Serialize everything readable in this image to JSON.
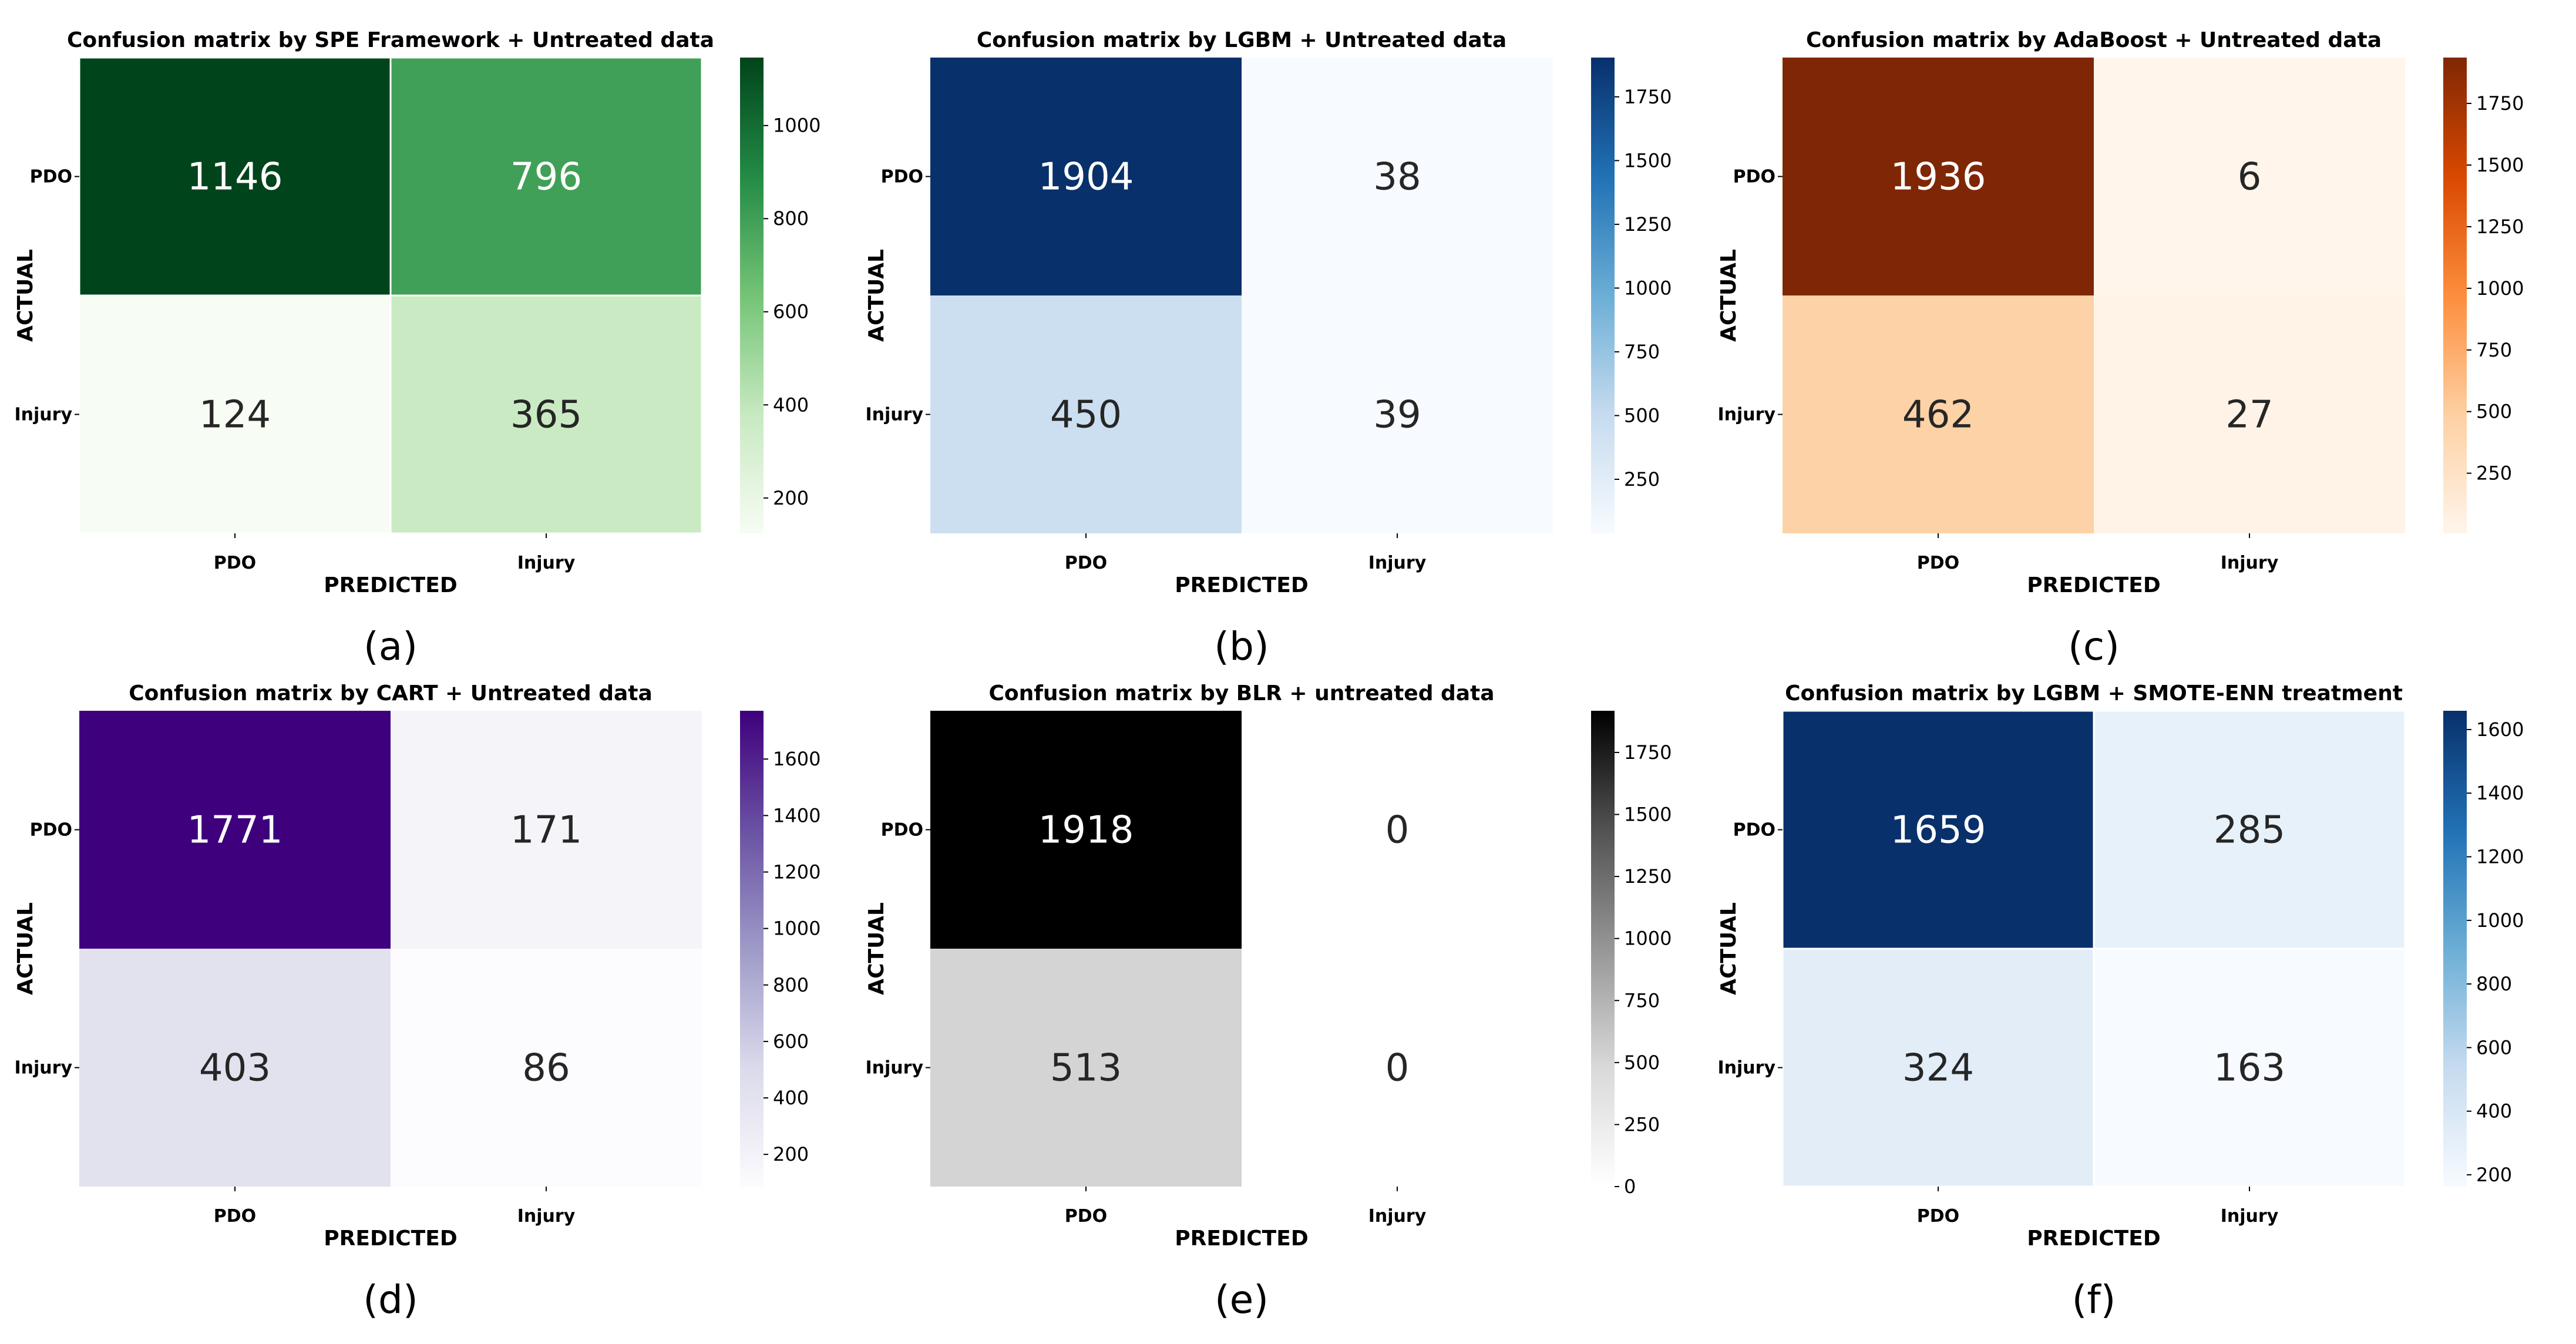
{
  "chart_data": [
    {
      "type": "heatmap",
      "panel_label": "(a)",
      "title": "Confusion matrix by SPE Framework + Untreated data",
      "xlabel": "PREDICTED",
      "ylabel": "ACTUAL",
      "x_categories": [
        "PDO",
        "Injury"
      ],
      "y_categories": [
        "PDO",
        "Injury"
      ],
      "values": [
        [
          1146,
          796
        ],
        [
          124,
          365
        ]
      ],
      "colormap": "Greens",
      "colors": [
        "#f7fcf5",
        "#c7e9c0",
        "#74c476",
        "#238b45",
        "#00441b"
      ],
      "colorbar_range": [
        124,
        1146
      ],
      "colorbar_ticks": [
        200,
        400,
        600,
        800,
        1000
      ],
      "grid_lines": true
    },
    {
      "type": "heatmap",
      "panel_label": "(b)",
      "title": "Confusion matrix by LGBM + Untreated data",
      "xlabel": "PREDICTED",
      "ylabel": "ACTUAL",
      "x_categories": [
        "PDO",
        "Injury"
      ],
      "y_categories": [
        "PDO",
        "Injury"
      ],
      "values": [
        [
          1904,
          38
        ],
        [
          450,
          39
        ]
      ],
      "colormap": "Blues",
      "colors": [
        "#f7fbff",
        "#c6dbef",
        "#6baed6",
        "#2171b5",
        "#08306b"
      ],
      "colorbar_range": [
        38,
        1904
      ],
      "colorbar_ticks": [
        250,
        500,
        750,
        1000,
        1250,
        1500,
        1750
      ],
      "grid_lines": false
    },
    {
      "type": "heatmap",
      "panel_label": "(c)",
      "title": "Confusion matrix by AdaBoost + Untreated data",
      "xlabel": "PREDICTED",
      "ylabel": "ACTUAL",
      "x_categories": [
        "PDO",
        "Injury"
      ],
      "y_categories": [
        "PDO",
        "Injury"
      ],
      "values": [
        [
          1936,
          6
        ],
        [
          462,
          27
        ]
      ],
      "colormap": "Oranges",
      "colors": [
        "#fff5eb",
        "#fdd0a2",
        "#fd8d3c",
        "#d94801",
        "#7f2704"
      ],
      "colorbar_range": [
        6,
        1936
      ],
      "colorbar_ticks": [
        250,
        500,
        750,
        1000,
        1250,
        1500,
        1750
      ],
      "grid_lines": false
    },
    {
      "type": "heatmap",
      "panel_label": "(d)",
      "title": "Confusion matrix by CART + Untreated data",
      "xlabel": "PREDICTED",
      "ylabel": "ACTUAL",
      "x_categories": [
        "PDO",
        "Injury"
      ],
      "y_categories": [
        "PDO",
        "Injury"
      ],
      "values": [
        [
          1771,
          171
        ],
        [
          403,
          86
        ]
      ],
      "colormap": "Purples",
      "colors": [
        "#fcfbfd",
        "#dadaeb",
        "#9e9ac8",
        "#6a51a3",
        "#3f007d"
      ],
      "colorbar_range": [
        86,
        1771
      ],
      "colorbar_ticks": [
        200,
        400,
        600,
        800,
        1000,
        1200,
        1400,
        1600
      ],
      "grid_lines": false
    },
    {
      "type": "heatmap",
      "panel_label": "(e)",
      "title": "Confusion matrix by BLR + untreated data",
      "xlabel": "PREDICTED",
      "ylabel": "ACTUAL",
      "x_categories": [
        "PDO",
        "Injury"
      ],
      "y_categories": [
        "PDO",
        "Injury"
      ],
      "values": [
        [
          1918,
          0
        ],
        [
          513,
          0
        ]
      ],
      "colormap": "Greys",
      "colors": [
        "#ffffff",
        "#d9d9d9",
        "#969696",
        "#525252",
        "#000000"
      ],
      "colorbar_range": [
        0,
        1918
      ],
      "colorbar_ticks": [
        0,
        250,
        500,
        750,
        1000,
        1250,
        1500,
        1750
      ],
      "grid_lines": false
    },
    {
      "type": "heatmap",
      "panel_label": "(f)",
      "title": "Confusion matrix by LGBM + SMOTE-ENN treatment",
      "xlabel": "PREDICTED",
      "ylabel": "ACTUAL",
      "x_categories": [
        "PDO",
        "Injury"
      ],
      "y_categories": [
        "PDO",
        "Injury"
      ],
      "values": [
        [
          1659,
          285
        ],
        [
          324,
          163
        ]
      ],
      "colormap": "Blues",
      "colors": [
        "#f7fbff",
        "#c6dbef",
        "#6baed6",
        "#2171b5",
        "#08306b"
      ],
      "colorbar_range": [
        163,
        1659
      ],
      "colorbar_ticks": [
        200,
        400,
        600,
        800,
        1000,
        1200,
        1400,
        1600
      ],
      "grid_lines": true
    }
  ]
}
